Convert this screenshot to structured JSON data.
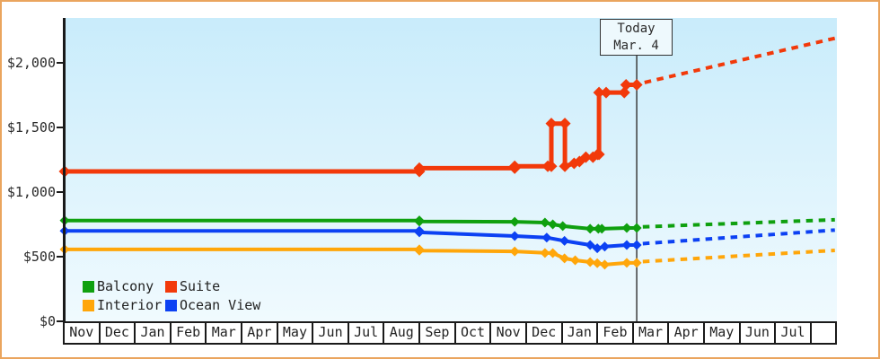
{
  "frame": {
    "border_color": "#eaa55e"
  },
  "chart_data": {
    "type": "line",
    "title": "",
    "plot_background_top": "#c9ecfb",
    "plot_background_bottom": "#f0fafe",
    "y_axis": {
      "ticks": [
        {
          "label": "$0",
          "value": 0
        },
        {
          "label": "$500",
          "value": 500
        },
        {
          "label": "$1,000",
          "value": 1000
        },
        {
          "label": "$1,500",
          "value": 1500
        },
        {
          "label": "$2,000",
          "value": 2000
        }
      ],
      "range": [
        0,
        2347
      ]
    },
    "x_axis": {
      "month_labels": [
        "Nov",
        "Dec",
        "Jan",
        "Feb",
        "Mar",
        "Apr",
        "May",
        "Jun",
        "Jul",
        "Aug",
        "Sep",
        "Oct",
        "Nov",
        "Dec",
        "Jan",
        "Feb",
        "Mar",
        "Apr",
        "May",
        "Jun",
        "Jul"
      ],
      "trailing_blank": true
    },
    "today_marker": {
      "line1": "Today",
      "line2": "Mar. 4",
      "month_offset": 16.08,
      "line_color": "#3c3c3c"
    },
    "legend": [
      {
        "label": "Balcony",
        "color": "#0fa00f"
      },
      {
        "label": "Suite",
        "color": "#f2390a"
      },
      {
        "label": "Interior",
        "color": "#ffa60a"
      },
      {
        "label": "Ocean View",
        "color": "#0c41f3"
      }
    ],
    "series": [
      {
        "name": "Interior",
        "color": "#ffa60a",
        "line_width": 4,
        "marker_half": 5.5,
        "solid_points": [
          [
            0,
            556
          ],
          [
            9.97,
            556
          ],
          [
            9.97,
            547
          ],
          [
            12.65,
            541
          ],
          [
            13.5,
            529
          ],
          [
            13.72,
            528
          ],
          [
            14.05,
            487
          ],
          [
            14.35,
            472
          ],
          [
            14.77,
            458
          ],
          [
            14.97,
            450
          ],
          [
            15.18,
            438
          ],
          [
            15.8,
            452
          ],
          [
            16.08,
            452
          ]
        ],
        "dashed_points": [
          [
            16.25,
            462
          ],
          [
            21.65,
            549
          ]
        ]
      },
      {
        "name": "Ocean View",
        "color": "#0c41f3",
        "line_width": 4,
        "marker_half": 5.5,
        "solid_points": [
          [
            0,
            700
          ],
          [
            9.97,
            700
          ],
          [
            9.97,
            688
          ],
          [
            12.65,
            660
          ],
          [
            13.55,
            648
          ],
          [
            14.05,
            622
          ],
          [
            14.77,
            590
          ],
          [
            14.97,
            565
          ],
          [
            15.18,
            578
          ],
          [
            15.8,
            590
          ],
          [
            16.08,
            590
          ]
        ],
        "dashed_points": [
          [
            16.25,
            601
          ],
          [
            21.65,
            706
          ]
        ]
      },
      {
        "name": "Balcony",
        "color": "#0fa00f",
        "line_width": 4,
        "marker_half": 5.5,
        "solid_points": [
          [
            0,
            780
          ],
          [
            9.97,
            780
          ],
          [
            9.97,
            772
          ],
          [
            12.65,
            770
          ],
          [
            13.5,
            764
          ],
          [
            13.72,
            750
          ],
          [
            14.0,
            737
          ],
          [
            14.77,
            716
          ],
          [
            15.0,
            716
          ],
          [
            15.1,
            716
          ],
          [
            15.8,
            722
          ],
          [
            16.08,
            722
          ]
        ],
        "dashed_points": [
          [
            16.25,
            731
          ],
          [
            21.65,
            786
          ]
        ]
      },
      {
        "name": "Suite",
        "color": "#f2390a",
        "line_width": 5,
        "marker_half": 6.5,
        "solid_points": [
          [
            0,
            1160
          ],
          [
            9.97,
            1160
          ],
          [
            9.97,
            1185
          ],
          [
            12.65,
            1185
          ],
          [
            12.65,
            1200
          ],
          [
            13.58,
            1200
          ],
          [
            13.68,
            1200
          ],
          [
            13.68,
            1530
          ],
          [
            14.06,
            1530
          ],
          [
            14.06,
            1200
          ],
          [
            14.32,
            1222
          ],
          [
            14.47,
            1236
          ],
          [
            14.65,
            1270
          ],
          [
            14.85,
            1270
          ],
          [
            14.98,
            1292
          ],
          [
            15.02,
            1292
          ],
          [
            15.02,
            1770
          ],
          [
            15.22,
            1770
          ],
          [
            15.73,
            1770
          ],
          [
            15.78,
            1830
          ],
          [
            16.08,
            1830
          ]
        ],
        "dashed_points": [
          [
            16.3,
            1848
          ],
          [
            21.65,
            2190
          ]
        ]
      }
    ]
  }
}
